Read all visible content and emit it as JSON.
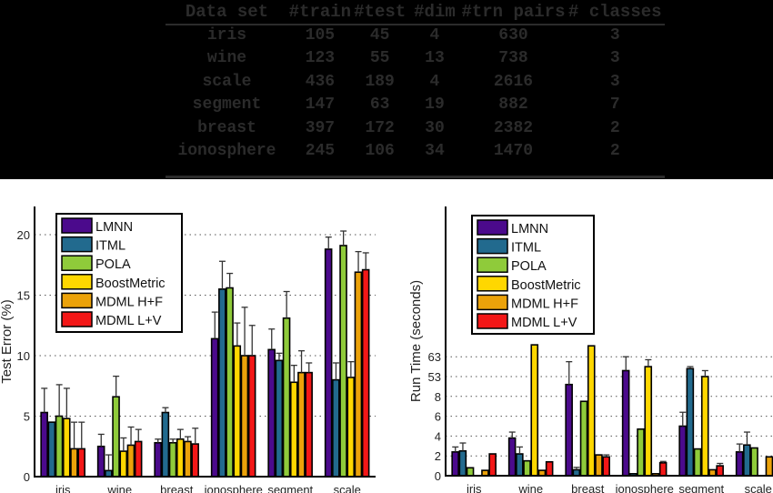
{
  "table": {
    "headers": [
      "Data set",
      "#train",
      "#test",
      "#dim",
      "#trn pairs",
      "# classes"
    ],
    "rows": [
      [
        "iris",
        "105",
        "45",
        "4",
        "630",
        "3"
      ],
      [
        "wine",
        "123",
        "55",
        "13",
        "738",
        "3"
      ],
      [
        "scale",
        "436",
        "189",
        "4",
        "2616",
        "3"
      ],
      [
        "segment",
        "147",
        "63",
        "19",
        "882",
        "7"
      ],
      [
        "breast",
        "397",
        "172",
        "30",
        "2382",
        "2"
      ],
      [
        "ionosphere",
        "245",
        "106",
        "34",
        "1470",
        "2"
      ]
    ]
  },
  "colors": {
    "LMNN": "#4b0a8c",
    "ITML": "#226a8e",
    "POLA": "#8fcb3a",
    "BoostMetric": "#ffd700",
    "MDML H+F": "#eba20a",
    "MDML L+V": "#f31717"
  },
  "chart_data": [
    {
      "type": "bar",
      "title": "",
      "xlabel": "",
      "ylabel": "Test Error (%)",
      "ylim": [
        0,
        22.5
      ],
      "yticks": [
        0,
        5,
        10,
        15,
        20
      ],
      "grid": "horizontal dotted",
      "legend_position": "upper left",
      "categories": [
        "iris",
        "wine",
        "breast",
        "ionosphere",
        "segment",
        "scale"
      ],
      "series": [
        {
          "name": "LMNN",
          "values": [
            5.3,
            2.5,
            2.8,
            11.4,
            10.5,
            18.8
          ],
          "error_top": [
            7.3,
            3.5,
            3.1,
            13.6,
            12.2,
            19.8
          ]
        },
        {
          "name": "ITML",
          "values": [
            4.5,
            0.5,
            5.3,
            15.5,
            9.6,
            8.0
          ],
          "error_top": [
            4.5,
            1.8,
            5.7,
            17.8,
            10.2,
            9.4
          ]
        },
        {
          "name": "POLA",
          "values": [
            5.0,
            6.6,
            2.8,
            15.6,
            13.1,
            19.1
          ],
          "error_top": [
            7.6,
            8.3,
            3.1,
            16.8,
            15.3,
            20.3
          ]
        },
        {
          "name": "BoostMetric",
          "values": [
            4.8,
            2.1,
            3.1,
            10.8,
            7.8,
            8.2
          ],
          "error_top": [
            7.3,
            3.2,
            3.9,
            12.7,
            9.2,
            9.5
          ]
        },
        {
          "name": "MDML H+F",
          "values": [
            2.3,
            2.6,
            2.9,
            10.0,
            8.6,
            16.9
          ],
          "error_top": [
            4.5,
            4.1,
            3.3,
            14.0,
            10.4,
            18.6
          ]
        },
        {
          "name": "MDML L+V",
          "values": [
            2.3,
            2.9,
            2.7,
            10.0,
            8.6,
            17.1
          ],
          "error_top": [
            4.5,
            3.9,
            4.0,
            12.5,
            9.4,
            18.5
          ]
        }
      ]
    },
    {
      "type": "bar",
      "title": "",
      "xlabel": "",
      "ylabel": "Run Time (seconds)",
      "axis_note": "broken axis; tick labels at equal spacing",
      "ytick_labels": [
        "0",
        "2",
        "4",
        "6",
        "8",
        "53",
        "63"
      ],
      "ylim_slots": [
        0,
        6.6
      ],
      "grid": "horizontal dotted",
      "legend_position": "upper left",
      "categories": [
        "iris",
        "wine",
        "breast",
        "ionosphere",
        "segment",
        "scale"
      ],
      "series": [
        {
          "name": "LMNN",
          "values": [
            1.2,
            1.9,
            4.6,
            5.3,
            2.5,
            1.2
          ],
          "error_top": [
            1.45,
            2.2,
            5.75,
            6.0,
            3.2,
            1.6
          ]
        },
        {
          "name": "ITML",
          "values": [
            1.25,
            1.1,
            0.3,
            0.1,
            5.4,
            1.55
          ],
          "error_top": [
            1.65,
            1.45,
            0.42,
            0.1,
            5.5,
            2.2
          ]
        },
        {
          "name": "POLA",
          "values": [
            0.4,
            0.75,
            3.75,
            2.35,
            1.35,
            1.4
          ],
          "error_top": [
            0.4,
            0.75,
            3.75,
            2.35,
            1.35,
            1.4
          ]
        },
        {
          "name": "BoostMetric",
          "values": [
            0.0,
            6.6,
            6.55,
            5.5,
            5.0,
            0.0
          ],
          "error_top": [
            0.0,
            6.6,
            6.6,
            5.85,
            5.3,
            0.0
          ]
        },
        {
          "name": "MDML H+F",
          "values": [
            0.27,
            0.27,
            1.05,
            0.1,
            0.3,
            0.95
          ],
          "error_top": [
            0.27,
            0.27,
            1.05,
            0.1,
            0.3,
            0.95
          ]
        },
        {
          "name": "MDML L+V",
          "values": [
            1.1,
            0.7,
            0.95,
            0.65,
            0.5,
            0.9
          ],
          "error_top": [
            1.1,
            0.75,
            1.05,
            0.72,
            0.62,
            0.9
          ]
        }
      ]
    }
  ]
}
